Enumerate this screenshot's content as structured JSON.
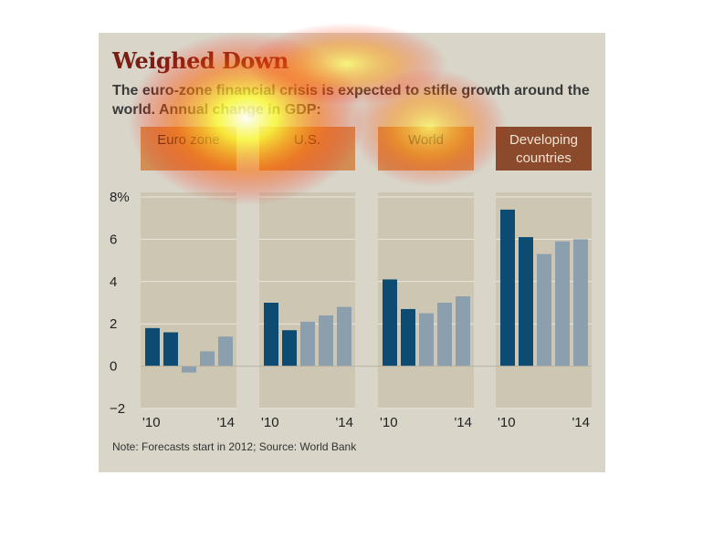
{
  "title": "Weighed Down",
  "subtitle": "The euro-zone financial crisis is expected to stifle growth around the world. Annual change in GDP:",
  "note": "Note: Forecasts start in 2012; Source: World Bank",
  "colors": {
    "actual": "#0d4b73",
    "forecast": "#8c9fae",
    "header": "#d28e55",
    "header_dark": "#8b4a2b",
    "panel": "#ccc6b3",
    "background": "#d9d5c9"
  },
  "chart_data": {
    "type": "bar",
    "ylim": [
      -2,
      8
    ],
    "yticks": [
      "8%",
      "6",
      "4",
      "2",
      "0",
      "−2"
    ],
    "ytick_values": [
      8,
      6,
      4,
      2,
      0,
      -2
    ],
    "grid": true,
    "categories": [
      "2010",
      "2011",
      "2012",
      "2013",
      "2014"
    ],
    "forecast_from": "2012",
    "panels": [
      {
        "name": "Euro zone",
        "values": [
          1.8,
          1.6,
          -0.3,
          0.7,
          1.4
        ],
        "xlabel_start": "'10",
        "xlabel_end": "'14"
      },
      {
        "name": "U.S.",
        "values": [
          3.0,
          1.7,
          2.1,
          2.4,
          2.8
        ],
        "xlabel_start": "'10",
        "xlabel_end": "'14"
      },
      {
        "name": "World",
        "values": [
          4.1,
          2.7,
          2.5,
          3.0,
          3.3
        ],
        "xlabel_start": "'10",
        "xlabel_end": "'14"
      },
      {
        "name": "Developing countries",
        "values": [
          7.4,
          6.1,
          5.3,
          5.9,
          6.0
        ],
        "xlabel_start": "'10",
        "xlabel_end": "'14"
      }
    ]
  }
}
